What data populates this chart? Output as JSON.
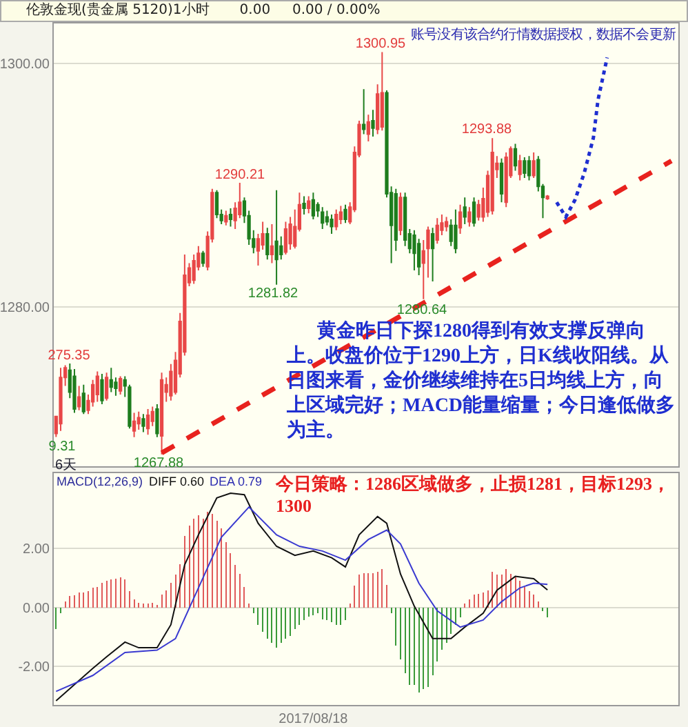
{
  "chart_data": [
    {
      "type": "candlestick",
      "title": "伦敦金现(贵金属 5120)1小时",
      "subtitle": "0.00     0.00 / 0.00%",
      "categories": [
        null,
        null,
        null,
        null,
        null,
        null,
        null,
        null,
        null,
        null,
        null,
        null,
        null,
        null,
        null,
        null,
        null,
        null,
        null,
        null,
        null,
        null,
        null,
        null,
        null,
        null,
        null,
        null,
        null,
        null,
        null,
        null,
        null,
        null,
        null,
        null,
        null,
        null,
        null,
        null,
        null,
        null,
        null,
        null,
        null,
        null,
        null,
        null,
        null,
        null,
        null,
        null,
        null,
        null,
        null,
        null,
        null,
        null,
        null,
        null,
        null,
        null,
        null,
        null,
        null,
        null,
        null,
        null,
        null,
        null,
        null,
        null,
        null,
        null,
        null,
        null,
        null,
        null,
        null,
        null,
        null,
        null,
        null,
        null,
        null,
        null,
        null,
        null,
        null,
        null,
        null,
        null,
        null,
        null,
        null,
        null,
        null,
        null,
        null,
        null,
        null,
        null,
        null,
        null,
        null,
        null,
        null,
        null,
        null,
        null,
        null,
        null,
        null,
        null,
        null,
        null,
        null,
        null,
        null,
        null,
        null,
        null,
        null,
        null,
        null,
        null,
        null,
        null,
        null,
        null,
        null,
        null,
        null,
        null,
        null,
        null
      ],
      "ohlc": [
        [
          1269.6,
          1271.0,
          1269.31,
          1271.0
        ],
        [
          1270.4,
          1275.0,
          1269.8,
          1274.2
        ],
        [
          1274.2,
          1275.2,
          1273.5,
          1275.0
        ],
        [
          1274.8,
          1275.35,
          1272.5,
          1273.0
        ],
        [
          1274.3,
          1274.9,
          1271.3,
          1271.6
        ],
        [
          1271.8,
          1273.5,
          1271.5,
          1272.6
        ],
        [
          1272.9,
          1273.6,
          1271.2,
          1271.4
        ],
        [
          1271.5,
          1272.8,
          1271.2,
          1272.3
        ],
        [
          1272.2,
          1274.0,
          1271.8,
          1273.6
        ],
        [
          1272.8,
          1274.7,
          1272.2,
          1274.3
        ],
        [
          1274.0,
          1274.5,
          1272.0,
          1272.3
        ],
        [
          1272.5,
          1274.6,
          1272.3,
          1274.2
        ],
        [
          1274.0,
          1275.0,
          1273.0,
          1273.4
        ],
        [
          1273.8,
          1274.2,
          1272.7,
          1273.3
        ],
        [
          1273.1,
          1274.3,
          1272.8,
          1274.1
        ],
        [
          1274.0,
          1274.3,
          1272.6,
          1273.5
        ],
        [
          1273.4,
          1273.6,
          1270.0,
          1270.2
        ],
        [
          1269.8,
          1271.3,
          1269.3,
          1270.6
        ],
        [
          1270.4,
          1271.4,
          1269.9,
          1270.9
        ],
        [
          1270.8,
          1271.2,
          1269.7,
          1270.2
        ],
        [
          1270.0,
          1271.6,
          1269.5,
          1271.1
        ],
        [
          1270.6,
          1271.8,
          1270.2,
          1271.4
        ],
        [
          1271.6,
          1272.0,
          1269.3,
          1269.6
        ],
        [
          1269.4,
          1274.6,
          1267.88,
          1274.0
        ],
        [
          1273.0,
          1274.2,
          1272.2,
          1273.6
        ],
        [
          1272.7,
          1275.3,
          1272.3,
          1274.7
        ],
        [
          1273.0,
          1276.3,
          1272.8,
          1275.6
        ],
        [
          1274.5,
          1279.5,
          1274.2,
          1278.8
        ],
        [
          1276.3,
          1284.3,
          1276.0,
          1282.6
        ],
        [
          1282.0,
          1283.6,
          1281.7,
          1283.2
        ],
        [
          1282.2,
          1284.3,
          1281.9,
          1283.8
        ],
        [
          1283.3,
          1285.0,
          1283.0,
          1284.4
        ],
        [
          1284.4,
          1284.6,
          1283.3,
          1283.6
        ],
        [
          1283.3,
          1286.2,
          1283.0,
          1285.8
        ],
        [
          1285.6,
          1289.7,
          1285.3,
          1289.4
        ],
        [
          1289.4,
          1289.6,
          1287.3,
          1287.6
        ],
        [
          1287.6,
          1288.0,
          1286.8,
          1287.1
        ],
        [
          1287.0,
          1287.9,
          1286.7,
          1287.5
        ],
        [
          1287.6,
          1288.1,
          1286.6,
          1287.2
        ],
        [
          1287.1,
          1288.6,
          1286.4,
          1288.1
        ],
        [
          1287.6,
          1290.21,
          1287.3,
          1288.6
        ],
        [
          1288.7,
          1289.0,
          1286.9,
          1287.5
        ],
        [
          1287.5,
          1287.9,
          1285.1,
          1285.6
        ],
        [
          1285.6,
          1286.3,
          1284.4,
          1284.9
        ],
        [
          1284.6,
          1286.0,
          1283.4,
          1285.6
        ],
        [
          1285.1,
          1287.0,
          1284.7,
          1286.0
        ],
        [
          1286.0,
          1286.5,
          1283.9,
          1284.3
        ],
        [
          1284.3,
          1286.8,
          1283.6,
          1285.0
        ],
        [
          1285.4,
          1289.6,
          1281.82,
          1283.9
        ],
        [
          1285.0,
          1285.8,
          1283.9,
          1284.3
        ],
        [
          1284.5,
          1287.0,
          1284.3,
          1286.4
        ],
        [
          1285.2,
          1287.4,
          1284.7,
          1286.8
        ],
        [
          1285.0,
          1288.0,
          1284.8,
          1286.6
        ],
        [
          1286.4,
          1289.4,
          1286.2,
          1288.4
        ],
        [
          1288.5,
          1289.1,
          1287.6,
          1288.1
        ],
        [
          1288.1,
          1289.1,
          1287.7,
          1288.7
        ],
        [
          1288.8,
          1289.4,
          1287.2,
          1287.5
        ],
        [
          1288.4,
          1288.6,
          1287.4,
          1287.9
        ],
        [
          1287.8,
          1288.2,
          1286.4,
          1286.9
        ],
        [
          1287.4,
          1287.9,
          1286.7,
          1287.0
        ],
        [
          1287.2,
          1287.6,
          1286.0,
          1286.6
        ],
        [
          1286.6,
          1288.0,
          1286.3,
          1287.6
        ],
        [
          1287.2,
          1288.3,
          1286.8,
          1287.8
        ],
        [
          1288.0,
          1288.4,
          1286.9,
          1287.2
        ],
        [
          1287.0,
          1288.6,
          1286.8,
          1288.2
        ],
        [
          1288.0,
          1293.2,
          1287.8,
          1292.7
        ],
        [
          1292.5,
          1295.3,
          1292.3,
          1295.0
        ],
        [
          1295.0,
          1297.9,
          1294.2,
          1294.6
        ],
        [
          1294.2,
          1295.8,
          1293.6,
          1295.2
        ],
        [
          1295.3,
          1296.2,
          1294.0,
          1294.7
        ],
        [
          1294.6,
          1298.3,
          1294.2,
          1297.5
        ],
        [
          1294.8,
          1300.95,
          1294.5,
          1297.6
        ],
        [
          1297.6,
          1297.8,
          1289.0,
          1289.3
        ],
        [
          1289.4,
          1289.9,
          1283.6,
          1286.7
        ],
        [
          1289.3,
          1289.7,
          1284.6,
          1285.5
        ],
        [
          1286.3,
          1289.4,
          1285.9,
          1289.0
        ],
        [
          1289.0,
          1289.4,
          1285.0,
          1285.5
        ],
        [
          1286.0,
          1286.4,
          1284.4,
          1284.8
        ],
        [
          1285.9,
          1286.3,
          1283.0,
          1284.4
        ],
        [
          1285.2,
          1285.6,
          1282.6,
          1283.3
        ],
        [
          1283.6,
          1285.5,
          1280.64,
          1284.6
        ],
        [
          1284.8,
          1286.6,
          1282.4,
          1286.3
        ],
        [
          1286.0,
          1286.5,
          1282.1,
          1284.8
        ],
        [
          1285.5,
          1287.3,
          1285.2,
          1286.7
        ],
        [
          1286.3,
          1287.6,
          1285.9,
          1286.9
        ],
        [
          1286.6,
          1287.4,
          1286.2,
          1287.0
        ],
        [
          1286.7,
          1287.2,
          1285.0,
          1285.4
        ],
        [
          1286.7,
          1288.0,
          1284.4,
          1284.8
        ],
        [
          1286.5,
          1288.4,
          1286.0,
          1287.8
        ],
        [
          1288.2,
          1289.0,
          1286.8,
          1287.4
        ],
        [
          1287.0,
          1288.2,
          1286.6,
          1287.8
        ],
        [
          1288.6,
          1289.0,
          1286.6,
          1286.9
        ],
        [
          1287.4,
          1288.8,
          1287.1,
          1288.4
        ],
        [
          1287.4,
          1289.8,
          1287.0,
          1288.9
        ],
        [
          1287.8,
          1291.2,
          1287.4,
          1290.8
        ],
        [
          1287.9,
          1293.88,
          1287.6,
          1292.7
        ],
        [
          1291.3,
          1292.4,
          1290.6,
          1291.8
        ],
        [
          1291.8,
          1292.2,
          1288.6,
          1289.3
        ],
        [
          1288.6,
          1292.7,
          1288.2,
          1292.3
        ],
        [
          1290.8,
          1293.2,
          1290.6,
          1293.0
        ],
        [
          1293.0,
          1293.4,
          1291.2,
          1291.6
        ],
        [
          1290.9,
          1292.5,
          1290.4,
          1292.0
        ],
        [
          1292.0,
          1292.3,
          1290.6,
          1291.0
        ],
        [
          1292.0,
          1292.4,
          1290.4,
          1290.8
        ],
        [
          1290.8,
          1292.7,
          1290.6,
          1292.0
        ],
        [
          1292.1,
          1292.4,
          1289.5,
          1289.9
        ],
        [
          1289.9,
          1290.1,
          1287.3,
          1289.0
        ],
        [
          1288.9,
          1289.2,
          1288.8,
          1289.1
        ],
        null,
        null,
        null,
        null,
        null,
        null,
        null,
        null,
        null,
        null,
        null,
        null,
        null,
        null,
        null,
        null,
        null,
        null,
        null,
        null,
        null,
        null,
        null,
        null,
        null,
        null,
        null,
        null
      ],
      "colors": [
        "#e84848",
        "#e84848",
        "#e84848",
        "#1e7d1e",
        "#1e7d1e",
        "#e84848",
        "#1e7d1e",
        "#e84848",
        "#e84848",
        "#e84848",
        "#1e7d1e",
        "#e84848",
        "#1e7d1e",
        "#1e7d1e",
        "#e84848",
        "#1e7d1e",
        "#1e7d1e",
        "#e84848",
        "#e84848",
        "#1e7d1e",
        "#e84848",
        "#e84848",
        "#1e7d1e",
        "#e84848",
        "#e84848",
        "#e84848",
        "#e84848",
        "#e84848",
        "#e84848",
        "#e84848",
        "#e84848",
        "#e84848",
        "#1e7d1e",
        "#e84848",
        "#e84848",
        "#1e7d1e",
        "#1e7d1e",
        "#e84848",
        "#1e7d1e",
        "#e84848",
        "#e84848",
        "#1e7d1e",
        "#1e7d1e",
        "#1e7d1e",
        "#e84848",
        "#e84848",
        "#1e7d1e",
        "#e84848",
        "#1e7d1e",
        "#1e7d1e",
        "#e84848",
        "#e84848",
        "#e84848",
        "#e84848",
        "#1e7d1e",
        "#e84848",
        "#1e7d1e",
        "#1e7d1e",
        "#1e7d1e",
        "#1e7d1e",
        "#1e7d1e",
        "#e84848",
        "#e84848",
        "#1e7d1e",
        "#e84848",
        "#e84848",
        "#e84848",
        "#1e7d1e",
        "#e84848",
        "#1e7d1e",
        "#e84848",
        "#e84848",
        "#1e7d1e",
        "#1e7d1e",
        "#1e7d1e",
        "#e84848",
        "#1e7d1e",
        "#1e7d1e",
        "#1e7d1e",
        "#1e7d1e",
        "#e84848",
        "#e84848",
        "#1e7d1e",
        "#e84848",
        "#e84848",
        "#e84848",
        "#1e7d1e",
        "#1e7d1e",
        "#e84848",
        "#1e7d1e",
        "#e84848",
        "#1e7d1e",
        "#e84848",
        "#e84848",
        "#e84848",
        "#e84848",
        "#e84848",
        "#1e7d1e",
        "#e84848",
        "#e84848",
        "#1e7d1e",
        "#e84848",
        "#1e7d1e",
        "#1e7d1e",
        "#e84848",
        "#1e7d1e",
        "#1e7d1e",
        "#e84848",
        null,
        null,
        null,
        null,
        null,
        null,
        null,
        null,
        null,
        null,
        null,
        null,
        null,
        null,
        null,
        null,
        null,
        null,
        null,
        null,
        null,
        null,
        null,
        null,
        null,
        null,
        null,
        null
      ],
      "series": [
        {
          "type": "line",
          "color": "#e8221e",
          "line_style": "dashed",
          "values": [
            null,
            null,
            null,
            null,
            null,
            null,
            null,
            null,
            null,
            null,
            null,
            null,
            null,
            null,
            null,
            null,
            null,
            null,
            null,
            null,
            null,
            null,
            null,
            1268.0,
            null,
            null,
            null,
            null,
            null,
            null,
            null,
            null,
            null,
            null,
            null,
            null,
            null,
            null,
            null,
            null,
            null,
            null,
            null,
            null,
            null,
            null,
            null,
            null,
            null,
            null,
            null,
            null,
            null,
            null,
            null,
            null,
            null,
            null,
            null,
            null,
            null,
            null,
            null,
            null,
            null,
            null,
            null,
            null,
            null,
            null,
            null,
            null,
            null,
            null,
            null,
            null,
            null,
            null,
            null,
            null,
            null,
            null,
            null,
            null,
            null,
            null,
            null,
            null,
            null,
            null,
            null,
            null,
            null,
            null,
            null,
            null,
            null,
            null,
            null,
            null,
            null,
            null,
            null,
            null,
            null,
            null,
            null,
            null,
            null,
            null,
            null,
            null,
            null,
            null,
            null,
            null,
            null,
            null,
            null,
            null,
            null,
            null,
            null,
            null,
            null,
            null,
            null,
            null,
            null,
            null,
            null,
            null,
            null,
            null,
            1292.0,
            null
          ]
        },
        {
          "type": "line",
          "color": "#1f2fd0",
          "line_style": "dotted",
          "values": [
            null,
            null,
            null,
            null,
            null,
            null,
            null,
            null,
            null,
            null,
            null,
            null,
            null,
            null,
            null,
            null,
            null,
            null,
            null,
            null,
            null,
            null,
            null,
            null,
            null,
            null,
            null,
            null,
            null,
            null,
            null,
            null,
            null,
            null,
            null,
            null,
            null,
            null,
            null,
            null,
            null,
            null,
            null,
            null,
            null,
            null,
            null,
            null,
            null,
            null,
            null,
            null,
            null,
            null,
            null,
            null,
            null,
            null,
            null,
            null,
            null,
            null,
            null,
            null,
            null,
            null,
            null,
            null,
            null,
            null,
            null,
            null,
            null,
            null,
            null,
            null,
            null,
            null,
            null,
            null,
            null,
            null,
            null,
            null,
            null,
            null,
            null,
            null,
            null,
            null,
            null,
            null,
            null,
            null,
            null,
            null,
            null,
            null,
            null,
            null,
            null,
            null,
            null,
            null,
            null,
            null,
            null,
            null,
            null,
            1288.6,
            null,
            1287.4,
            null,
            1288.8,
            null,
            1291.0,
            null,
            1293.9,
            1297.0,
            null,
            1300.5,
            null,
            null,
            null,
            null,
            null,
            null,
            null,
            null,
            null,
            null,
            null,
            null,
            null,
            null,
            null
          ]
        }
      ],
      "ylim": [
        1266.9,
        1303.3
      ],
      "yticks": [
        {
          "value": 1280,
          "label": "1280.00"
        },
        {
          "value": 1300,
          "label": "1300.00"
        }
      ],
      "grid": "y",
      "tick_labels": "y",
      "annotations": [
        "1300.95",
        "1290.21",
        "1281.82",
        "1293.88",
        "1280.64",
        "1267.88",
        "275.35",
        "9.31",
        "账号没有该合约行情数据授权，数据不会更新",
        "黄金昨日下探1280得到有效支撑反弹向上。收盘价位于1290上方，日K线收阳线。从日图来看，金价继续维持在5日均线上方，向上区域完好；MACD能量缩量；今日逢低做多为主。",
        "6天"
      ]
    },
    {
      "type": "bar",
      "categories": [
        null,
        null,
        null,
        null,
        null,
        null,
        null,
        null,
        null,
        null,
        null,
        null,
        null,
        null,
        null,
        null,
        null,
        null,
        null,
        null,
        null,
        null,
        null,
        null,
        null,
        null,
        null,
        null,
        null,
        null,
        null,
        null,
        null,
        null,
        null,
        null,
        null,
        null,
        null,
        null,
        null,
        null,
        null,
        null,
        null,
        null,
        null,
        null,
        null,
        null,
        null,
        null,
        null,
        null,
        null,
        null,
        "2017/08/18",
        null,
        null,
        null,
        null,
        null,
        null,
        null,
        null,
        null,
        null,
        null,
        null,
        null,
        null,
        null,
        null,
        null,
        null,
        null,
        null,
        null,
        null,
        null,
        null,
        null,
        null,
        null,
        null,
        null,
        null,
        null,
        null,
        null,
        null,
        null,
        null,
        null,
        null,
        null,
        null,
        null,
        null,
        null,
        null,
        null,
        null,
        null,
        null,
        null,
        null,
        null,
        null,
        null,
        null,
        null,
        null,
        null,
        null,
        null,
        null,
        null,
        null,
        null,
        null,
        null,
        null,
        null,
        null,
        null,
        null,
        null,
        null,
        null,
        null,
        null,
        null,
        null,
        null,
        null
      ],
      "series": [
        {
          "type": "bar",
          "color": "#e05a5a",
          "values": [
            null,
            null,
            0.2,
            0.39,
            0.42,
            0.52,
            0.52,
            0.55,
            0.67,
            0.7,
            0.83,
            0.91,
            0.95,
            0.98,
            1.02,
            0.95,
            0.55,
            0.28,
            0.17,
            0.13,
            0.13,
            0.17,
            0.09,
            0.44,
            0.59,
            0.83,
            1.11,
            1.48,
            2.42,
            2.78,
            3.02,
            3.14,
            3.02,
            3.25,
            3.17,
            2.94,
            2.7,
            2.23,
            1.84,
            1.45,
            1.14,
            0.7,
            0.13,
            null,
            null,
            null,
            null,
            null,
            null,
            null,
            null,
            null,
            null,
            null,
            null,
            null,
            null,
            null,
            null,
            null,
            null,
            null,
            null,
            null,
            0.13,
            0.75,
            1.11,
            1.17,
            1.17,
            1.17,
            1.22,
            1.3,
            0.78,
            null,
            null,
            null,
            null,
            null,
            null,
            null,
            null,
            null,
            null,
            null,
            null,
            null,
            null,
            null,
            null,
            0.13,
            0.28,
            0.44,
            0.47,
            0.52,
            0.59,
            1.22,
            1.11,
            1.11,
            1.3,
            1.14,
            1.02,
            0.91,
            0.7,
            0.55,
            0.44,
            0.2,
            null,
            null,
            null,
            null,
            null,
            null,
            null,
            null,
            null,
            null,
            null,
            null,
            null,
            null,
            null,
            null,
            null,
            null,
            null,
            null,
            null,
            null,
            null,
            null,
            null,
            null,
            null,
            null,
            null,
            null
          ]
        },
        {
          "type": "bar",
          "color": "#3a9a3a",
          "values": [
            -0.73,
            -0.19,
            null,
            null,
            null,
            null,
            null,
            null,
            null,
            null,
            null,
            null,
            null,
            null,
            null,
            null,
            null,
            null,
            null,
            null,
            null,
            null,
            null,
            null,
            null,
            null,
            null,
            null,
            null,
            null,
            null,
            null,
            null,
            null,
            null,
            null,
            null,
            null,
            null,
            null,
            null,
            null,
            null,
            -0.19,
            -0.58,
            -0.81,
            -1.05,
            -1.2,
            -1.36,
            -1.2,
            -1.05,
            -0.97,
            -0.73,
            -0.58,
            -0.42,
            -0.3,
            -0.27,
            -0.19,
            -0.39,
            -0.42,
            -0.5,
            -0.58,
            -0.58,
            -0.42,
            null,
            null,
            null,
            null,
            null,
            null,
            null,
            null,
            null,
            -0.19,
            -1.28,
            -1.75,
            -2.22,
            -2.61,
            -2.61,
            -2.89,
            -2.77,
            -2.69,
            -2.3,
            -1.83,
            -1.44,
            -1.2,
            -0.89,
            -0.58,
            -0.34,
            null,
            null,
            null,
            null,
            null,
            null,
            null,
            null,
            null,
            null,
            null,
            null,
            null,
            null,
            null,
            null,
            null,
            -0.11,
            -0.34,
            null,
            null,
            null,
            null,
            null,
            null,
            null,
            null,
            null,
            null,
            null,
            null,
            null,
            null,
            null,
            null,
            null,
            null,
            null,
            null,
            null,
            null,
            null,
            null,
            null,
            null,
            null,
            null
          ]
        },
        {
          "type": "line",
          "color": "#111111",
          "values": [
            -3.16,
            null,
            null,
            null,
            -2.61,
            null,
            null,
            null,
            -2.06,
            null,
            null,
            -1.67,
            null,
            null,
            null,
            -1.17,
            null,
            null,
            -1.36,
            null,
            null,
            null,
            -1.36,
            null,
            null,
            -0.58,
            null,
            null,
            1.45,
            null,
            null,
            2.47,
            null,
            null,
            null,
            3.72,
            null,
            null,
            3.88,
            null,
            null,
            3.83,
            null,
            null,
            2.86,
            null,
            null,
            null,
            2.08,
            null,
            null,
            null,
            1.77,
            null,
            null,
            null,
            1.92,
            null,
            null,
            null,
            1.69,
            null,
            null,
            1.38,
            null,
            null,
            2.47,
            null,
            null,
            null,
            3.09,
            null,
            2.86,
            null,
            null,
            1.14,
            null,
            null,
            0.05,
            null,
            null,
            null,
            -1.05,
            null,
            null,
            null,
            -1.05,
            null,
            null,
            -0.66,
            null,
            null,
            null,
            -0.19,
            null,
            null,
            0.59,
            null,
            null,
            null,
            1.06,
            null,
            null,
            null,
            0.98,
            null,
            null,
            0.6,
            null,
            null,
            null,
            null,
            null,
            null,
            null,
            null,
            null,
            null,
            null,
            null,
            null,
            null,
            null,
            null,
            null,
            null,
            null,
            null,
            null,
            null,
            null,
            null,
            null,
            null,
            null,
            null
          ]
        },
        {
          "type": "line",
          "color": "#3a3ad0",
          "values": [
            -2.84,
            null,
            null,
            null,
            null,
            null,
            null,
            null,
            -2.3,
            null,
            null,
            null,
            null,
            null,
            null,
            -1.52,
            null,
            null,
            null,
            null,
            null,
            null,
            -1.44,
            null,
            null,
            null,
            -1.05,
            null,
            null,
            null,
            null,
            0.67,
            null,
            null,
            null,
            null,
            2.39,
            null,
            null,
            null,
            null,
            null,
            3.41,
            null,
            null,
            null,
            null,
            null,
            2.47,
            null,
            null,
            null,
            null,
            2.08,
            null,
            null,
            null,
            null,
            1.92,
            null,
            null,
            null,
            null,
            1.61,
            null,
            null,
            null,
            null,
            2.31,
            null,
            null,
            null,
            2.63,
            null,
            null,
            2.16,
            null,
            null,
            null,
            0.83,
            null,
            null,
            null,
            -0.11,
            null,
            null,
            null,
            null,
            -0.66,
            null,
            null,
            null,
            null,
            -0.42,
            null,
            null,
            null,
            0.2,
            null,
            null,
            null,
            0.67,
            null,
            null,
            0.83,
            null,
            null,
            0.79,
            null,
            null,
            null,
            null,
            null,
            null,
            null,
            null,
            null,
            null,
            null,
            null,
            null,
            null,
            null,
            null,
            null,
            null,
            null,
            null,
            null,
            null,
            null,
            null,
            null,
            null,
            null,
            null
          ]
        }
      ],
      "ylim": [
        -3.3,
        4.56
      ],
      "yticks": [
        {
          "value": -2,
          "label": "-2.00"
        },
        {
          "value": 0,
          "label": "0.00"
        },
        {
          "value": 2,
          "label": "2.00"
        }
      ],
      "grid": "y",
      "annotations": [
        "MACD(12,26,9)",
        "DIFF  0.60",
        "DEA  0.79",
        "今日策略：1286区域做多，止损1281，目标1293，1300"
      ]
    }
  ]
}
